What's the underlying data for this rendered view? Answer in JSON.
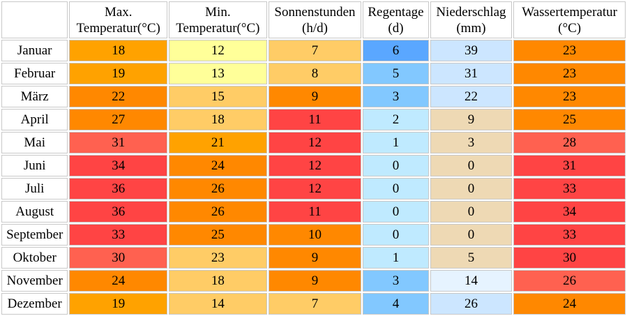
{
  "table": {
    "headers": [
      {
        "line1": "",
        "line2": ""
      },
      {
        "line1": "Max.",
        "line2": "Temperatur(°C)"
      },
      {
        "line1": "Min.",
        "line2": "Temperatur(°C)"
      },
      {
        "line1": "Sonnenstunden",
        "line2": "(h/d)"
      },
      {
        "line1": "Regentage",
        "line2": "(d)"
      },
      {
        "line1": "Niederschlag",
        "line2": "(mm)"
      },
      {
        "line1": "Wassertemperatur",
        "line2": "(°C)"
      }
    ],
    "rows": [
      {
        "month": "Januar",
        "cells": [
          "18",
          "12",
          "7",
          "6",
          "39",
          "23"
        ],
        "colors": [
          "#ffa200",
          "#ffff99",
          "#ffcc66",
          "#5aa7ff",
          "#cce6ff",
          "#ff8800"
        ]
      },
      {
        "month": "Februar",
        "cells": [
          "19",
          "13",
          "8",
          "5",
          "31",
          "23"
        ],
        "colors": [
          "#ffa200",
          "#ffff99",
          "#ffcc66",
          "#82c8ff",
          "#cce6ff",
          "#ff8800"
        ]
      },
      {
        "month": "März",
        "cells": [
          "22",
          "15",
          "9",
          "3",
          "22",
          "23"
        ],
        "colors": [
          "#ff8800",
          "#ffcc66",
          "#ff8800",
          "#82c8ff",
          "#cce6ff",
          "#ff8800"
        ]
      },
      {
        "month": "April",
        "cells": [
          "27",
          "18",
          "11",
          "2",
          "9",
          "25"
        ],
        "colors": [
          "#ff8800",
          "#ffcc66",
          "#ff4444",
          "#bfeaff",
          "#eed9b4",
          "#ff8800"
        ]
      },
      {
        "month": "Mai",
        "cells": [
          "31",
          "21",
          "12",
          "1",
          "3",
          "28"
        ],
        "colors": [
          "#ff6150",
          "#ffa200",
          "#ff4444",
          "#bfeaff",
          "#eed9b4",
          "#ff6150"
        ]
      },
      {
        "month": "Juni",
        "cells": [
          "34",
          "24",
          "12",
          "0",
          "0",
          "31"
        ],
        "colors": [
          "#ff4444",
          "#ff8800",
          "#ff4444",
          "#bfeaff",
          "#eed9b4",
          "#ff4444"
        ]
      },
      {
        "month": "Juli",
        "cells": [
          "36",
          "26",
          "12",
          "0",
          "0",
          "33"
        ],
        "colors": [
          "#ff4444",
          "#ff8800",
          "#ff4444",
          "#bfeaff",
          "#eed9b4",
          "#ff4444"
        ]
      },
      {
        "month": "August",
        "cells": [
          "36",
          "26",
          "11",
          "0",
          "0",
          "34"
        ],
        "colors": [
          "#ff4444",
          "#ff8800",
          "#ff4444",
          "#bfeaff",
          "#eed9b4",
          "#ff4444"
        ]
      },
      {
        "month": "September",
        "cells": [
          "33",
          "25",
          "10",
          "0",
          "0",
          "33"
        ],
        "colors": [
          "#ff4444",
          "#ff8800",
          "#ff8800",
          "#bfeaff",
          "#eed9b4",
          "#ff4444"
        ]
      },
      {
        "month": "Oktober",
        "cells": [
          "30",
          "23",
          "9",
          "1",
          "5",
          "30"
        ],
        "colors": [
          "#ff6150",
          "#ffcc66",
          "#ff8800",
          "#bfeaff",
          "#eed9b4",
          "#ff4444"
        ]
      },
      {
        "month": "November",
        "cells": [
          "24",
          "18",
          "9",
          "3",
          "14",
          "26"
        ],
        "colors": [
          "#ff8800",
          "#ffcc66",
          "#ff8800",
          "#82c8ff",
          "#e6f3ff",
          "#ff6150"
        ]
      },
      {
        "month": "Dezember",
        "cells": [
          "19",
          "14",
          "7",
          "4",
          "26",
          "24"
        ],
        "colors": [
          "#ffa200",
          "#ffcc66",
          "#ffcc66",
          "#82c8ff",
          "#cce6ff",
          "#ff8800"
        ]
      }
    ]
  }
}
